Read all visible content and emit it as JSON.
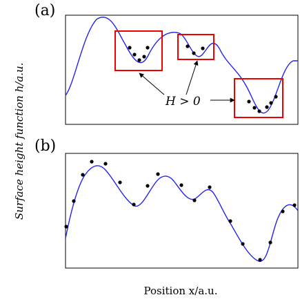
{
  "panel_a": {
    "label": "(a)",
    "annotation": "H > 0"
  },
  "panel_b": {
    "label": "(b)"
  },
  "ylabel": "Surface height function h/a.u.",
  "xlabel": "Position x/a.u.",
  "colors": {
    "curve": "#2222ee",
    "box": "#ee0000",
    "dots": "#000000",
    "frame": "#000000"
  }
}
